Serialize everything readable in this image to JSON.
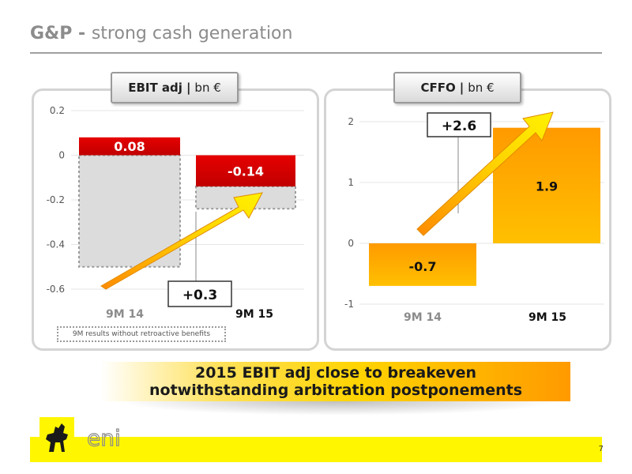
{
  "header": {
    "title_bold": "G&P - ",
    "title_rest": "strong cash generation"
  },
  "left_panel": {
    "pill_bold": "EBIT adj",
    "pill_sep": "|",
    "pill_unit": "bn €",
    "note": "9M results without retroactive benefits"
  },
  "right_panel": {
    "pill_bold": "CFFO",
    "pill_sep": "|",
    "pill_unit": "bn €"
  },
  "banner": {
    "line1": "2015 EBIT adj close to breakeven",
    "line2": "notwithstanding arbitration postponements"
  },
  "footer": {
    "page_number": "7",
    "logo_text": "eni"
  },
  "colors": {
    "red": "#e00000",
    "grey_fill": "#dcdcdc",
    "orange_start": "#ff9900",
    "orange_end": "#ffc000",
    "arrow_yellow": "#ffee00",
    "arrow_orange": "#ff8800",
    "footer_yellow": "#fff600"
  },
  "chart_data": [
    {
      "type": "bar",
      "title": "EBIT adj | bn €",
      "categories": [
        "9M 14",
        "9M 15"
      ],
      "ylim": [
        -0.6,
        0.2
      ],
      "yticks": [
        0.2,
        0,
        -0.2,
        -0.4,
        -0.6
      ],
      "ytick_labels": [
        "0.2",
        "0",
        "-0.2",
        "-0.4",
        "-0.6"
      ],
      "grid": true,
      "series": [
        {
          "values": [
            0.08,
            -0.14
          ]
        },
        {
          "values": [
            -0.5,
            -0.24
          ]
        }
      ],
      "data_labels": [
        "0.08",
        "-0.14"
      ],
      "annotation": "+0.3"
    },
    {
      "type": "bar",
      "title": "CFFO | bn €",
      "categories": [
        "9M 14",
        "9M 15"
      ],
      "ylim": [
        -1,
        2
      ],
      "yticks": [
        2,
        1,
        0,
        -1
      ],
      "ytick_labels": [
        "2",
        "1",
        "0",
        "-1"
      ],
      "grid": true,
      "values": [
        -0.7,
        1.9
      ],
      "data_labels": [
        "-0.7",
        "1.9"
      ],
      "annotation": "+2.6"
    }
  ]
}
